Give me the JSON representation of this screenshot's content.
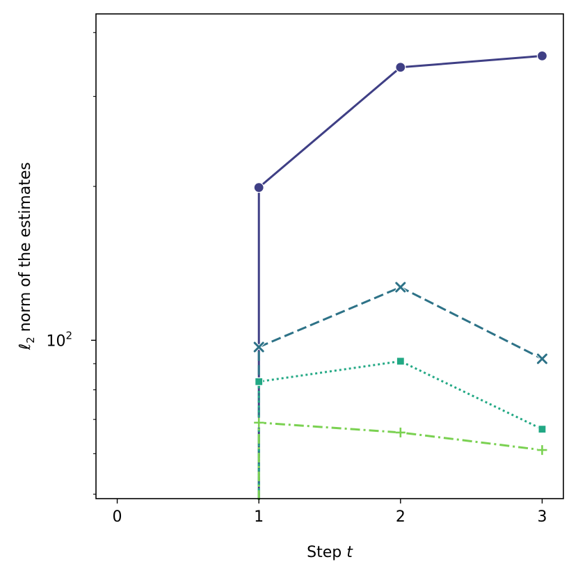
{
  "chart_data": {
    "type": "line",
    "title": "",
    "xlabel": {
      "prefix": "Step ",
      "var": "t"
    },
    "ylabel": {
      "ell": "ℓ",
      "sub": "2",
      "rest": " norm of the estimates"
    },
    "xlim": [
      -0.15,
      3.15
    ],
    "ylim": [
      49.0,
      435.0
    ],
    "yscale": "log",
    "xticks": [
      0,
      1,
      2,
      3
    ],
    "yticks": [
      {
        "value": 100,
        "base": "10",
        "exp": "2"
      }
    ],
    "grid": false,
    "legend": "none",
    "series": [
      {
        "x": [
          1,
          2,
          3
        ],
        "y": [
          199,
          342,
          360
        ],
        "color": "#3f3f85",
        "dash": "solid",
        "marker": "circle",
        "drop": true
      },
      {
        "x": [
          1,
          2,
          3
        ],
        "y": [
          97,
          127,
          92
        ],
        "color": "#2d7287",
        "dash": "dashed",
        "marker": "x",
        "drop": true
      },
      {
        "x": [
          1,
          2,
          3
        ],
        "y": [
          83,
          91,
          67
        ],
        "color": "#22a884",
        "dash": "dotted",
        "marker": "square",
        "drop": true
      },
      {
        "x": [
          1,
          2,
          3
        ],
        "y": [
          69,
          66,
          61
        ],
        "color": "#7ad151",
        "dash": "dashdot",
        "marker": "plus",
        "drop": true
      }
    ]
  }
}
